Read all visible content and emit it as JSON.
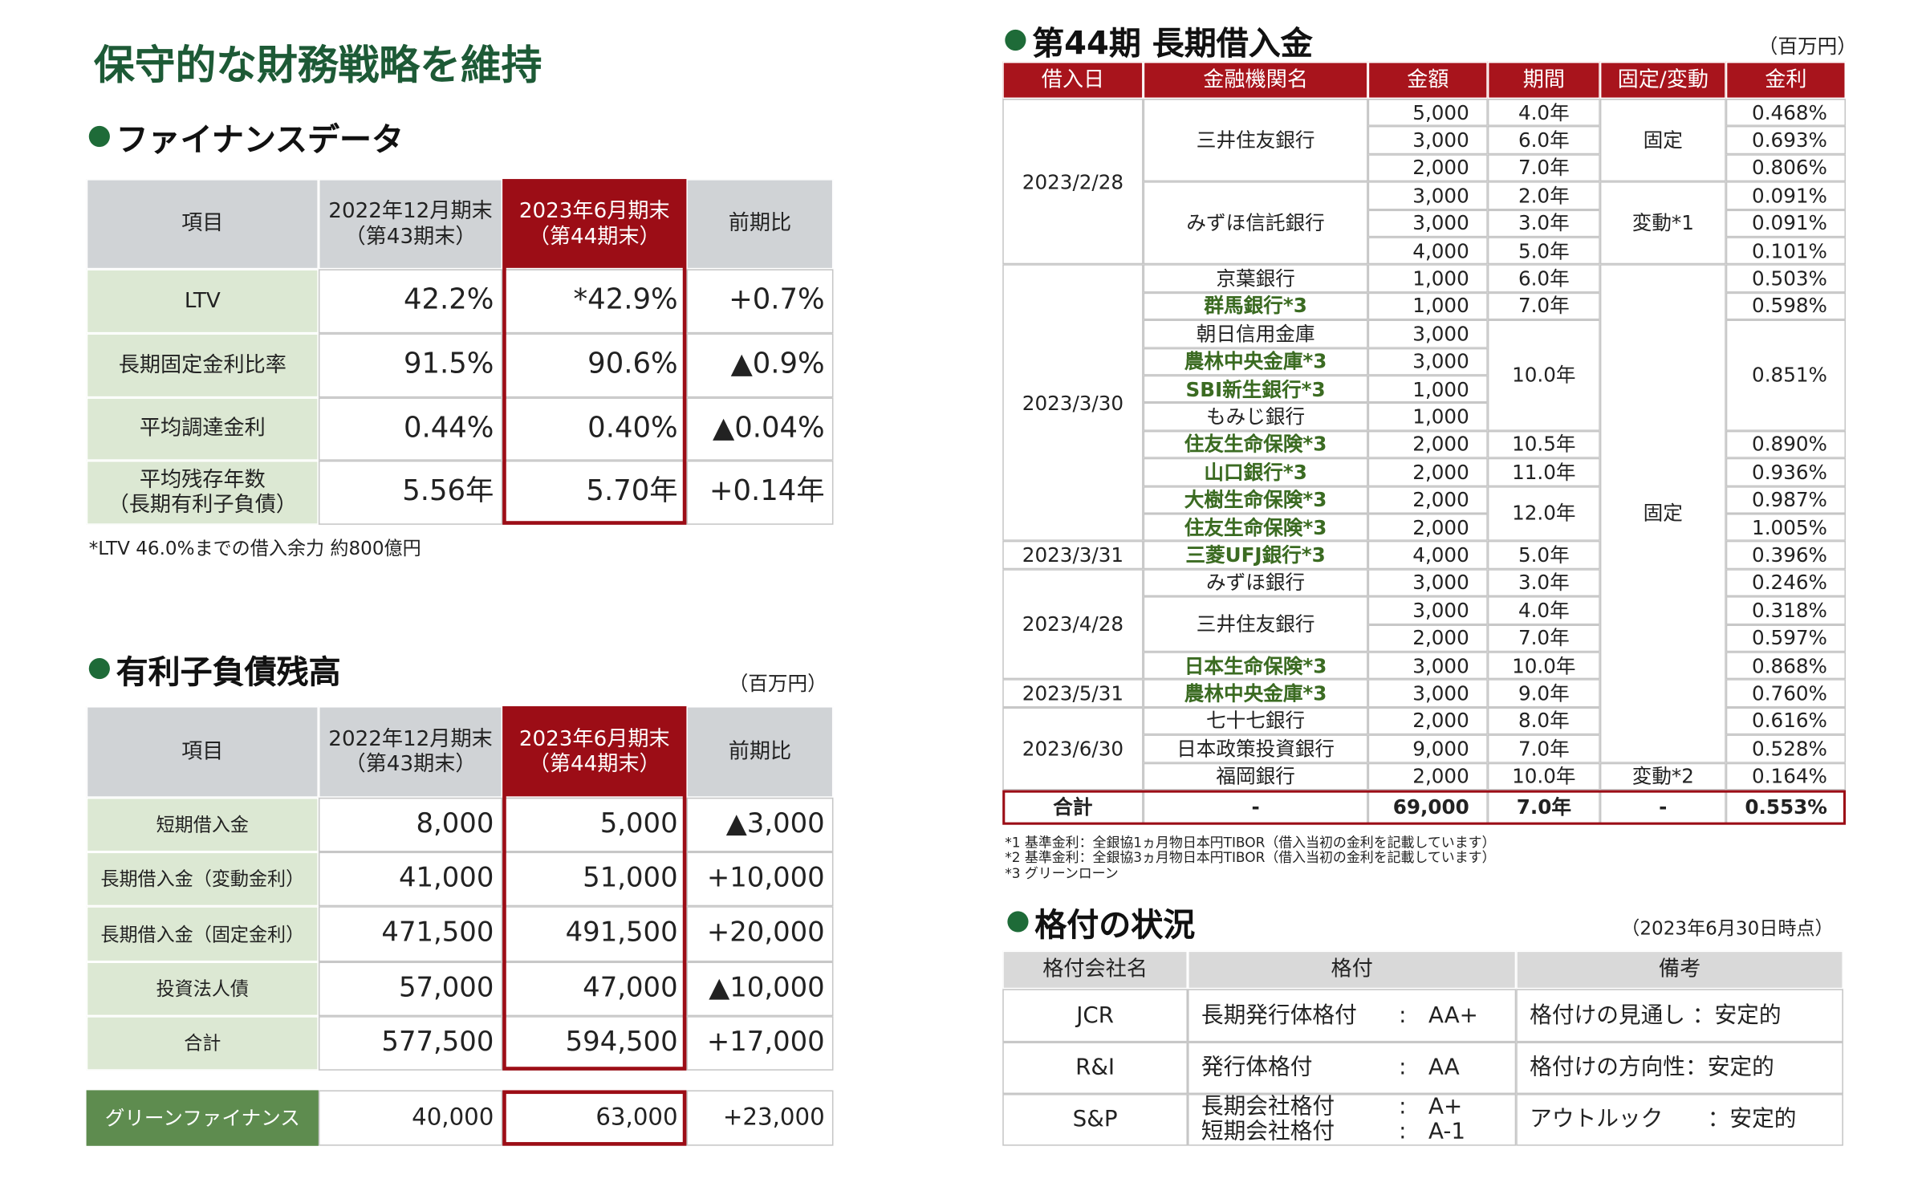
{
  "title": "保守的な財務戦略を維持",
  "finance": {
    "heading": "ファイナンスデータ",
    "header": [
      "項目",
      "2022年12月期末\n（第43期末）",
      "2023年6月期末\n（第44期末）",
      "前期比"
    ],
    "rows": [
      [
        "LTV",
        "42.2%",
        "*42.9%",
        "+0.7%"
      ],
      [
        "長期固定金利比率",
        "91.5%",
        "90.6%",
        "▲0.9%"
      ],
      [
        "平均調達金利",
        "0.44%",
        "0.40%",
        "▲0.04%"
      ],
      [
        "平均残存年数\n（長期有利子負債）",
        "5.56年",
        "5.70年",
        "+0.14年"
      ]
    ],
    "note": "*LTV 46.0%までの借入余力 約800億円"
  },
  "debt": {
    "heading": "有利子負債残高",
    "unit": "（百万円）",
    "header": [
      "項目",
      "2022年12月期末\n（第43期末）",
      "2023年6月期末\n（第44期末）",
      "前期比"
    ],
    "rows": [
      [
        "短期借入金",
        "8,000",
        "5,000",
        "▲3,000"
      ],
      [
        "長期借入金（変動金利）",
        "41,000",
        "51,000",
        "+10,000"
      ],
      [
        "長期借入金（固定金利）",
        "471,500",
        "491,500",
        "+20,000"
      ],
      [
        "投資法人債",
        "57,000",
        "47,000",
        "▲10,000"
      ],
      [
        "合計",
        "577,500",
        "594,500",
        "+17,000"
      ]
    ],
    "green_row": [
      "グリーンファイナンス",
      "40,000",
      "63,000",
      "+23,000"
    ]
  },
  "loans": {
    "heading": "第44期 長期借入金",
    "unit": "（百万円）",
    "header": [
      "借入日",
      "金融機関名",
      "金額",
      "期間",
      "固定/変動",
      "金利"
    ],
    "dates": [
      "2023/2/28",
      "2023/3/30",
      "2023/3/31",
      "2023/4/28",
      "2023/5/31",
      "2023/6/30"
    ],
    "banks": [
      {
        "name": "三井住友銀行",
        "green": false
      },
      {
        "name": "みずほ信託銀行",
        "green": false
      },
      {
        "name": "京葉銀行",
        "green": false
      },
      {
        "name": "群馬銀行*3",
        "green": true
      },
      {
        "name": "朝日信用金庫",
        "green": false
      },
      {
        "name": "農林中央金庫*3",
        "green": true
      },
      {
        "name": "SBI新生銀行*3",
        "green": true
      },
      {
        "name": "もみじ銀行",
        "green": false
      },
      {
        "name": "住友生命保険*3",
        "green": true
      },
      {
        "name": "山口銀行*3",
        "green": true
      },
      {
        "name": "大樹生命保険*3",
        "green": true
      },
      {
        "name": "住友生命保険*3",
        "green": true
      },
      {
        "name": "三菱UFJ銀行*3",
        "green": true
      },
      {
        "name": "みずほ銀行",
        "green": false
      },
      {
        "name": "三井住友銀行",
        "green": false
      },
      {
        "name": "日本生命保険*3",
        "green": true
      },
      {
        "name": "農林中央金庫*3",
        "green": true
      },
      {
        "name": "七十七銀行",
        "green": false
      },
      {
        "name": "日本政策投資銀行",
        "green": false
      },
      {
        "name": "福岡銀行",
        "green": false
      }
    ],
    "amounts": [
      "5,000",
      "3,000",
      "2,000",
      "3,000",
      "3,000",
      "4,000",
      "1,000",
      "1,000",
      "3,000",
      "3,000",
      "1,000",
      "1,000",
      "2,000",
      "2,000",
      "2,000",
      "2,000",
      "4,000",
      "3,000",
      "3,000",
      "2,000",
      "3,000",
      "3,000",
      "2,000",
      "9,000",
      "2,000"
    ],
    "periods": [
      "4.0年",
      "6.0年",
      "7.0年",
      "2.0年",
      "3.0年",
      "5.0年",
      "6.0年",
      "7.0年",
      "10.0年",
      "10.5年",
      "11.0年",
      "12.0年",
      "5.0年",
      "3.0年",
      "4.0年",
      "7.0年",
      "10.0年",
      "9.0年",
      "8.0年",
      "7.0年",
      "10.0年"
    ],
    "types": [
      "固定",
      "変動*1",
      "固定",
      "変動*2"
    ],
    "rates": [
      "0.468%",
      "0.693%",
      "0.806%",
      "0.091%",
      "0.091%",
      "0.101%",
      "0.503%",
      "0.598%",
      "0.851%",
      "0.890%",
      "0.936%",
      "0.987%",
      "1.005%",
      "0.396%",
      "0.246%",
      "0.318%",
      "0.597%",
      "0.868%",
      "0.760%",
      "0.616%",
      "0.528%",
      "0.164%"
    ],
    "total": [
      "合計",
      "-",
      "69,000",
      "7.0年",
      "-",
      "0.553%"
    ],
    "footnotes": [
      "*1  基準金利：全銀協1ヵ月物日本円TIBOR（借入当初の金利を記載しています）",
      "*2  基準金利：全銀協3ヵ月物日本円TIBOR（借入当初の金利を記載しています）",
      "*3  グリーンローン"
    ]
  },
  "ratings": {
    "heading": "格付の状況",
    "as_of": "（2023年6月30日時点）",
    "header": [
      "格付会社名",
      "格付",
      "備考"
    ],
    "separator": ":",
    "rows": [
      {
        "agency": "JCR",
        "ratings": [
          {
            "name": "長期発行体格付",
            "value": "AA+"
          }
        ],
        "note": "格付けの見通し ：安定的"
      },
      {
        "agency": "R&I",
        "ratings": [
          {
            "name": "発行体格付",
            "value": "AA"
          }
        ],
        "note": "格付けの方向性：安定的"
      },
      {
        "agency": "S&P",
        "ratings": [
          {
            "name": "長期会社格付",
            "value": "A+"
          },
          {
            "name": "短期会社格付",
            "value": "A-1"
          }
        ],
        "note": "アウトルック　　：安定的"
      }
    ]
  }
}
